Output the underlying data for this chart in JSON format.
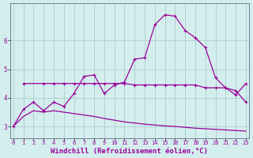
{
  "background_color": "#d4eeee",
  "grid_color": "#aacccc",
  "line_color": "#990099",
  "xlabel": "Windchill (Refroidissement éolien,°C)",
  "xlabel_fontsize": 6.5,
  "xticks": [
    0,
    1,
    2,
    3,
    4,
    5,
    6,
    7,
    8,
    9,
    10,
    11,
    12,
    13,
    14,
    15,
    16,
    17,
    18,
    19,
    20,
    21,
    22,
    23
  ],
  "yticks": [
    3,
    4,
    5,
    6
  ],
  "ylim": [
    2.6,
    7.3
  ],
  "xlim": [
    -0.3,
    23.3
  ],
  "line1_x": [
    0,
    1,
    2,
    3,
    4,
    5,
    6,
    7,
    8,
    9,
    10,
    11,
    12,
    13,
    14,
    15,
    16,
    17,
    18,
    19,
    20,
    21,
    22,
    23
  ],
  "line1_y": [
    3.0,
    3.6,
    3.85,
    3.55,
    3.85,
    3.7,
    4.15,
    4.75,
    4.8,
    4.15,
    4.45,
    4.55,
    5.35,
    5.4,
    6.55,
    6.9,
    6.85,
    6.35,
    6.1,
    5.75,
    4.7,
    4.35,
    4.25,
    3.85
  ],
  "line2_x": [
    1,
    3,
    4,
    5,
    6,
    7,
    8,
    9,
    10,
    11,
    12,
    13,
    14,
    15,
    16,
    17,
    18,
    19,
    20,
    21,
    22,
    23
  ],
  "line2_y": [
    4.5,
    4.5,
    4.5,
    4.5,
    4.5,
    4.5,
    4.5,
    4.5,
    4.5,
    4.5,
    4.45,
    4.45,
    4.45,
    4.45,
    4.45,
    4.45,
    4.45,
    4.35,
    4.35,
    4.35,
    4.1,
    4.5
  ],
  "line3_x": [
    0,
    1,
    2,
    3,
    4,
    5,
    6,
    7,
    8,
    9,
    10,
    11,
    12,
    13,
    14,
    15,
    16,
    17,
    18,
    19,
    20,
    21,
    22,
    23
  ],
  "line3_y": [
    3.0,
    3.35,
    3.55,
    3.5,
    3.55,
    3.5,
    3.45,
    3.4,
    3.35,
    3.28,
    3.22,
    3.16,
    3.12,
    3.08,
    3.05,
    3.02,
    3.0,
    2.97,
    2.94,
    2.92,
    2.9,
    2.88,
    2.86,
    2.84
  ]
}
